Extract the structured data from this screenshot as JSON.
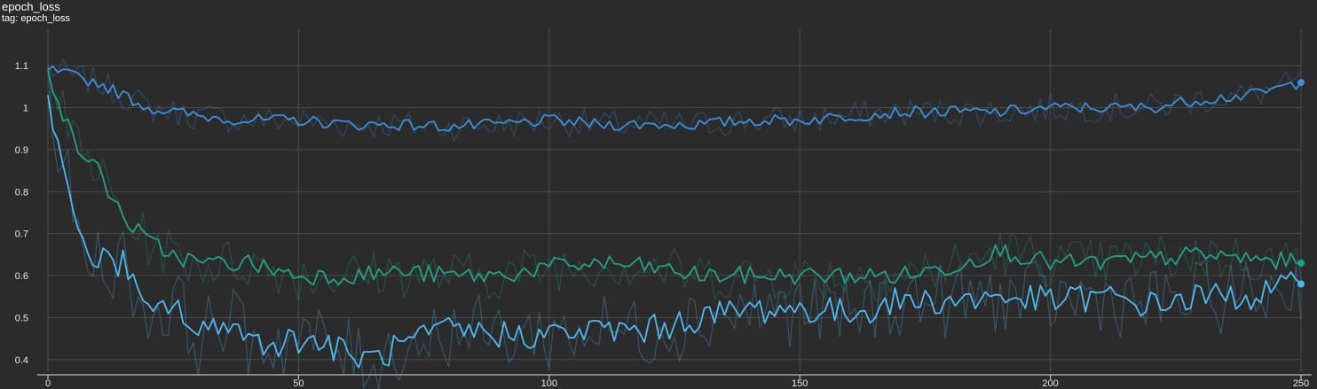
{
  "header": {
    "title": "epoch_loss",
    "tag": "tag: epoch_loss"
  },
  "chart_data": {
    "type": "line",
    "title": "epoch_loss",
    "subtitle": "tag: epoch_loss",
    "xlabel": "",
    "ylabel": "",
    "xlim": [
      0,
      250
    ],
    "ylim": [
      0.37,
      1.17
    ],
    "x_ticks": [
      0,
      50,
      100,
      150,
      200,
      250
    ],
    "y_ticks": [
      0.4,
      0.5,
      0.6,
      0.7,
      0.8,
      0.9,
      1,
      1.1
    ],
    "grid": true,
    "legend": "none",
    "series": [
      {
        "color": "#3d8fd9",
        "x": [
          0,
          10,
          20,
          30,
          40,
          50,
          60,
          70,
          80,
          90,
          100,
          110,
          120,
          130,
          140,
          150,
          160,
          170,
          180,
          190,
          200,
          210,
          220,
          230,
          240,
          250
        ],
        "values": [
          1.09,
          1.06,
          1.0,
          0.98,
          0.97,
          0.97,
          0.96,
          0.96,
          0.955,
          0.96,
          0.97,
          0.96,
          0.96,
          0.96,
          0.97,
          0.97,
          0.98,
          0.99,
          0.99,
          0.99,
          1.0,
          1.0,
          1.0,
          1.02,
          1.03,
          1.06
        ]
      },
      {
        "color": "#26a085",
        "x": [
          0,
          5,
          10,
          15,
          20,
          25,
          30,
          40,
          50,
          60,
          70,
          80,
          90,
          100,
          110,
          120,
          130,
          140,
          150,
          160,
          170,
          180,
          190,
          200,
          210,
          220,
          230,
          240,
          250
        ],
        "values": [
          1.09,
          0.92,
          0.85,
          0.74,
          0.68,
          0.65,
          0.63,
          0.63,
          0.6,
          0.6,
          0.61,
          0.6,
          0.6,
          0.62,
          0.63,
          0.62,
          0.6,
          0.6,
          0.6,
          0.6,
          0.6,
          0.62,
          0.66,
          0.63,
          0.63,
          0.64,
          0.65,
          0.64,
          0.63
        ]
      },
      {
        "color": "#4fb8f0",
        "x": [
          0,
          3,
          6,
          10,
          15,
          20,
          25,
          30,
          35,
          40,
          45,
          50,
          55,
          60,
          65,
          70,
          80,
          90,
          100,
          110,
          120,
          130,
          140,
          150,
          160,
          170,
          180,
          190,
          200,
          210,
          220,
          230,
          240,
          250
        ],
        "values": [
          1.03,
          0.88,
          0.68,
          0.64,
          0.63,
          0.5,
          0.54,
          0.45,
          0.5,
          0.45,
          0.44,
          0.45,
          0.44,
          0.41,
          0.4,
          0.43,
          0.47,
          0.46,
          0.46,
          0.47,
          0.47,
          0.5,
          0.52,
          0.52,
          0.51,
          0.54,
          0.54,
          0.55,
          0.54,
          0.55,
          0.53,
          0.55,
          0.55,
          0.58
        ]
      }
    ]
  }
}
